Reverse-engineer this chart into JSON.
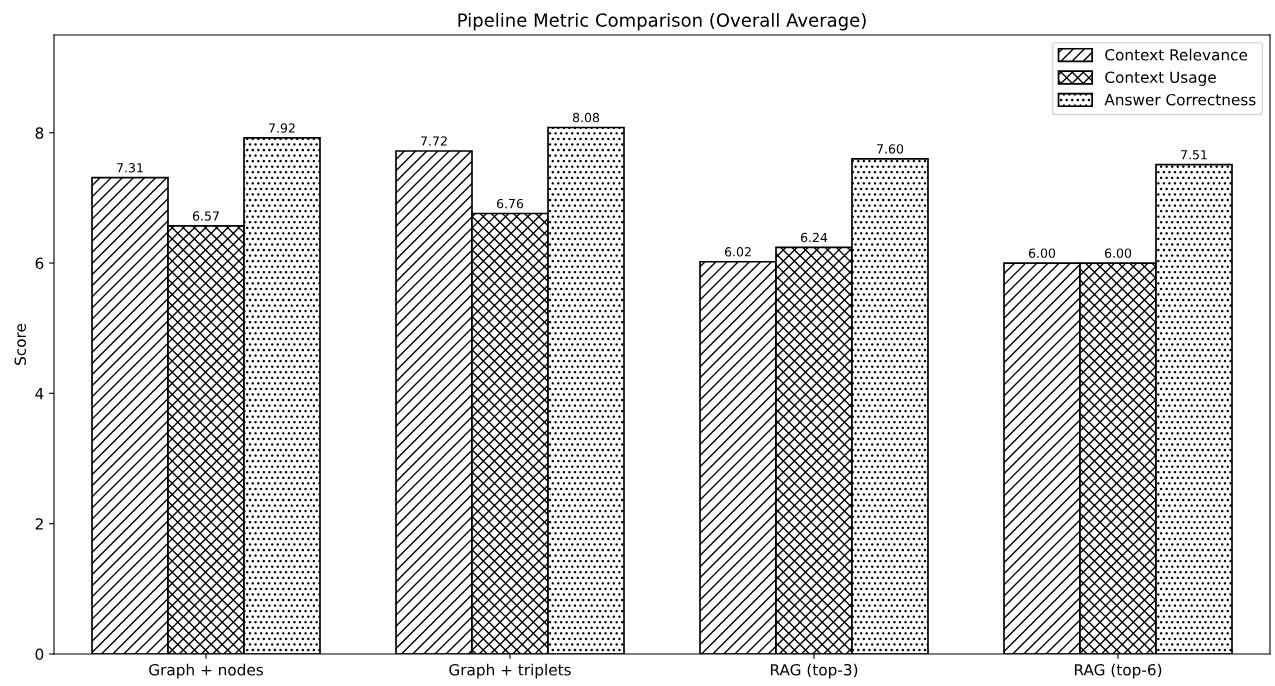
{
  "chart_data": {
    "type": "bar",
    "title": "Pipeline Metric Comparison (Overall Average)",
    "ylabel": "Score",
    "categories": [
      "Graph + nodes",
      "Graph + triplets",
      "RAG (top-3)",
      "RAG (top-6)"
    ],
    "series": [
      {
        "name": "Context Relevance",
        "color": "#000000",
        "values": [
          7.31,
          7.72,
          6.02,
          6.0
        ],
        "value_labels": [
          "7.31",
          "7.72",
          "6.02",
          "6.00"
        ]
      },
      {
        "name": "Context Usage",
        "color": "#000000",
        "values": [
          6.57,
          6.76,
          6.24,
          6.0
        ],
        "value_labels": [
          "6.57",
          "6.76",
          "6.24",
          "6.00"
        ]
      },
      {
        "name": "Answer Correctness",
        "color": "#000000",
        "values": [
          7.92,
          8.08,
          7.6,
          7.51
        ],
        "value_labels": [
          "7.92",
          "8.08",
          "7.60",
          "7.51"
        ]
      }
    ],
    "ylim": [
      0,
      9.5
    ],
    "yticks": [
      0,
      2,
      4,
      6,
      8
    ],
    "legend": "top right",
    "grid": false
  }
}
